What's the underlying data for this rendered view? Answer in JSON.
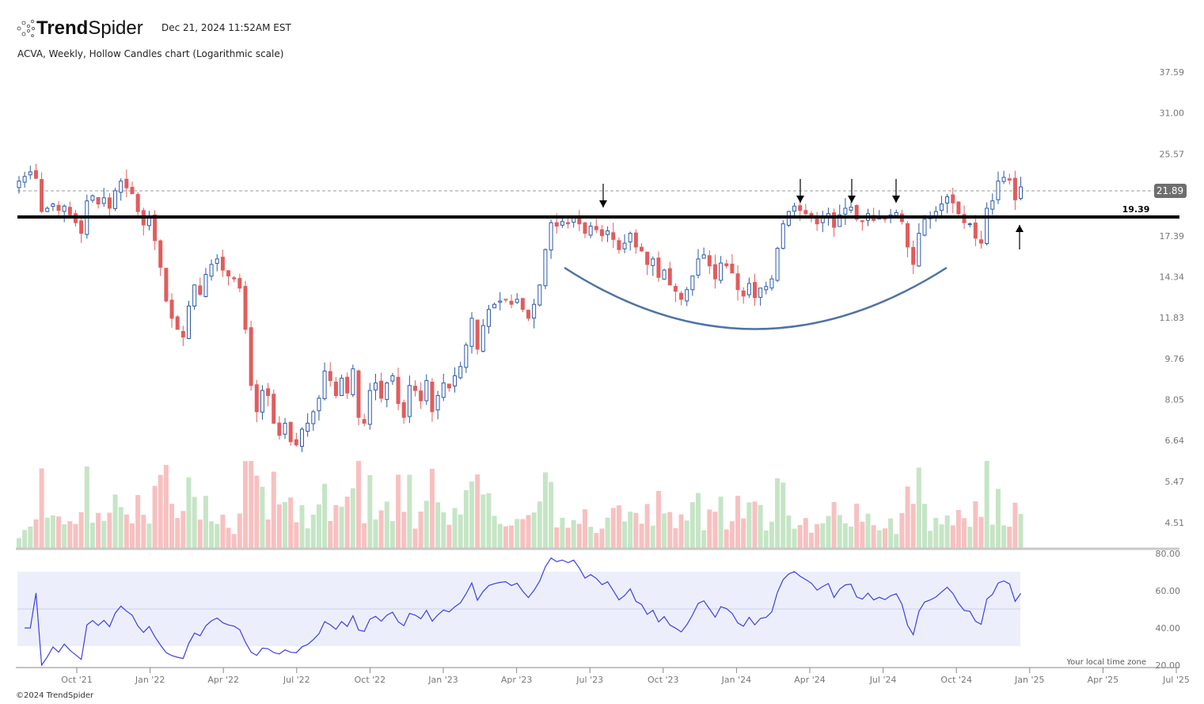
{
  "header": {
    "brand_bold": "Trend",
    "brand_light": "Spider",
    "timestamp": "Dec 21, 2024 11:52AM EST",
    "subtitle": "ACVA, Weekly, Hollow Candles chart (Logarithmic scale)"
  },
  "footer": {
    "copyright": "©2024 TrendSpider",
    "timezone_note": "Your local time zone"
  },
  "colors": {
    "up": "#2b5aa8",
    "down": "#e25c5c",
    "vol_up": "#c5e5c5",
    "vol_down": "#f8c0c0",
    "rsi_line": "#3f3fe0",
    "rsi_band": "#eceffb",
    "curve": "#4e73a3"
  },
  "chart_data": {
    "type": "candlestick",
    "symbol": "ACVA",
    "interval": "Weekly",
    "scale": "log",
    "start_week": "2021-08-02",
    "closes": [
      22.5,
      23,
      23.5,
      22.8,
      19.5,
      19.8,
      20.2,
      19.6,
      20,
      19.2,
      18.5,
      17.6,
      20.5,
      21,
      20.2,
      20.8,
      19.8,
      21.5,
      22.5,
      21.8,
      21.2,
      19.5,
      18.3,
      19,
      17,
      15,
      12.8,
      11.8,
      11.2,
      10.8,
      12.5,
      13.8,
      13.2,
      14.5,
      15.2,
      15.6,
      14.8,
      14.4,
      14.2,
      13.6,
      11.2,
      8.6,
      7.6,
      8.4,
      8.2,
      7.2,
      6.8,
      7.2,
      6.6,
      6.5,
      7.0,
      7.2,
      7.6,
      8.1,
      9.2,
      8.8,
      8.2,
      8.9,
      8.3,
      9.3,
      7.4,
      7.2,
      8.4,
      8.7,
      8.1,
      8.7,
      9.0,
      7.9,
      7.4,
      8.6,
      8.4,
      8.0,
      8.8,
      7.6,
      8.2,
      8.7,
      8.5,
      9.0,
      9.4,
      10.4,
      11.8,
      10.2,
      11.4,
      12.3,
      12.6,
      12.8,
      12.9,
      12.6,
      12.9,
      12.3,
      11.8,
      12.6,
      13.8,
      16.3,
      18.5,
      18.2,
      18.6,
      18.4,
      19.0,
      18.4,
      17.6,
      18.2,
      17.9,
      17.4,
      17.8,
      17.1,
      16.3,
      16.8,
      17.6,
      16.5,
      16.2,
      15.2,
      15.6,
      14.3,
      14.8,
      13.8,
      13.4,
      12.9,
      13.5,
      14.4,
      15.6,
      15.9,
      15.1,
      14.2,
      15.3,
      15.1,
      14.6,
      13.5,
      13.1,
      13.9,
      13.0,
      13.6,
      13.7,
      14.2,
      16.4,
      18.4,
      19.5,
      20.0,
      19.6,
      19.3,
      19.0,
      18.4,
      18.9,
      19.3,
      18.1,
      19.2,
      19.8,
      19.9,
      18.8,
      18.6,
      19.3,
      18.7,
      19.0,
      18.8,
      19.2,
      19.4,
      18.6,
      16.5,
      15.2,
      17.6,
      18.8,
      19.1,
      19.5,
      20.2,
      20.9,
      20.3,
      19.3,
      18.5,
      18.4,
      17.2,
      16.8,
      19.8,
      20.5,
      22.5,
      22.9,
      22.6,
      20.6,
      21.89
    ],
    "last_price": "21.89",
    "support_level": "19.39",
    "price_ticks": [
      "37.59",
      "31.00",
      "25.57",
      "21.89",
      "17.39",
      "14.34",
      "11.83",
      "9.76",
      "8.05",
      "6.64",
      "5.47",
      "4.51"
    ],
    "rsi_ticks": [
      "80.00",
      "60.00",
      "40.00",
      "20.00"
    ],
    "rsi_period": 14,
    "rsi_band": [
      30,
      70
    ],
    "x_ticks": [
      "Oct '21",
      "Jan '22",
      "Apr '22",
      "Jul '22",
      "Oct '22",
      "Jan '23",
      "Apr '23",
      "Jul '23",
      "Oct '23",
      "Jan '24",
      "Apr '24",
      "Jul '24",
      "Oct '24",
      "Jan '25",
      "Apr '25",
      "Jul '25"
    ],
    "annotations": {
      "down_arrow_weeks": [
        103,
        138,
        147,
        155
      ],
      "up_arrow_week": 177,
      "rounded_bottom": "cup from Jun '23 to Sep '24"
    }
  }
}
